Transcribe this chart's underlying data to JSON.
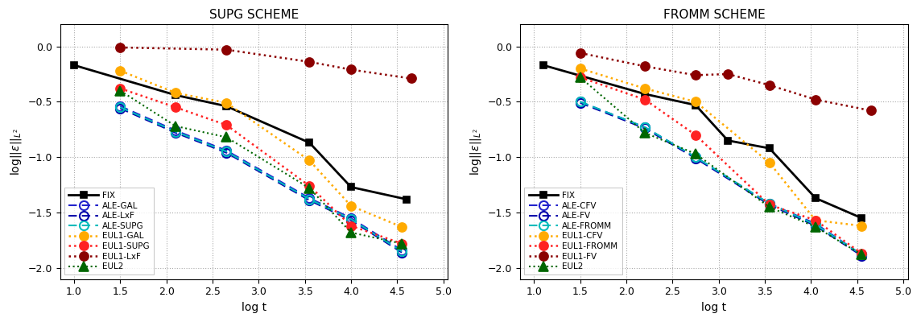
{
  "left_title": "SUPG SCHEME",
  "right_title": "FROMM SCHEME",
  "xlabel": "log t",
  "ylabel": "log||$\\varepsilon$||$_{L^2}$",
  "xlim": [
    0.85,
    5.05
  ],
  "ylim": [
    -2.1,
    0.2
  ],
  "xticks": [
    1,
    1.5,
    2,
    2.5,
    3,
    3.5,
    4,
    4.5,
    5
  ],
  "yticks": [
    0,
    -0.5,
    -1,
    -1.5,
    -2
  ],
  "left_series": [
    {
      "label": "FIX",
      "x": [
        1.0,
        2.1,
        2.65,
        3.55,
        4.0,
        4.6
      ],
      "y": [
        -0.17,
        -0.44,
        -0.54,
        -0.87,
        -1.27,
        -1.38
      ],
      "color": "#000000",
      "linestyle": "-",
      "marker": "s",
      "markersize": 6,
      "linewidth": 2.0,
      "markerfacecolor": "#000000"
    },
    {
      "label": "ALE-GAL",
      "x": [
        1.5,
        2.1,
        2.65,
        3.55,
        4.0,
        4.55
      ],
      "y": [
        -0.54,
        -0.76,
        -0.94,
        -1.37,
        -1.55,
        -1.84
      ],
      "color": "#2222cc",
      "linestyle": "dashed",
      "marker": "o",
      "markersize": 8,
      "linewidth": 1.5,
      "markerfacecolor": "none"
    },
    {
      "label": "ALE-LxF",
      "x": [
        1.5,
        2.1,
        2.65,
        3.55,
        4.0,
        4.55
      ],
      "y": [
        -0.56,
        -0.78,
        -0.96,
        -1.39,
        -1.57,
        -1.86
      ],
      "color": "#0000aa",
      "linestyle": "dashed",
      "marker": "o",
      "markersize": 8,
      "linewidth": 1.5,
      "markerfacecolor": "none"
    },
    {
      "label": "ALE-SUPG",
      "x": [
        1.5,
        2.1,
        2.65,
        3.55,
        4.0,
        4.55
      ],
      "y": [
        -0.55,
        -0.77,
        -0.95,
        -1.38,
        -1.56,
        -1.85
      ],
      "color": "#00bbbb",
      "linestyle": "dashed",
      "marker": "o",
      "markersize": 8,
      "linewidth": 1.5,
      "markerfacecolor": "none"
    },
    {
      "label": "EUL1-GAL",
      "x": [
        1.5,
        2.1,
        2.65,
        3.55,
        4.0,
        4.55
      ],
      "y": [
        -0.22,
        -0.42,
        -0.51,
        -1.03,
        -1.44,
        -1.63
      ],
      "color": "#ffaa00",
      "linestyle": "dotted",
      "marker": "o",
      "markersize": 8,
      "linewidth": 1.8,
      "markerfacecolor": "#ffaa00"
    },
    {
      "label": "EUL1-SUPG",
      "x": [
        1.5,
        2.1,
        2.65,
        3.55,
        4.0,
        4.55
      ],
      "y": [
        -0.38,
        -0.55,
        -0.71,
        -1.26,
        -1.62,
        -1.78
      ],
      "color": "#ff2222",
      "linestyle": "dotted",
      "marker": "o",
      "markersize": 8,
      "linewidth": 1.8,
      "markerfacecolor": "#ff2222"
    },
    {
      "label": "EUL1-LxF",
      "x": [
        1.5,
        2.65,
        3.55,
        4.0,
        4.65
      ],
      "y": [
        -0.01,
        -0.03,
        -0.14,
        -0.21,
        -0.29
      ],
      "color": "#8b0000",
      "linestyle": "dotted",
      "marker": "o",
      "markersize": 8,
      "linewidth": 1.8,
      "markerfacecolor": "#8b0000"
    },
    {
      "label": "EUL2",
      "x": [
        1.5,
        2.1,
        2.65,
        3.55,
        4.0,
        4.55
      ],
      "y": [
        -0.4,
        -0.72,
        -0.82,
        -1.28,
        -1.68,
        -1.78
      ],
      "color": "#006600",
      "linestyle": "dotted",
      "marker": "^",
      "markersize": 8,
      "linewidth": 1.5,
      "markerfacecolor": "#006600"
    }
  ],
  "right_series": [
    {
      "label": "FIX",
      "x": [
        1.1,
        2.2,
        2.75,
        3.1,
        3.55,
        4.05,
        4.55
      ],
      "y": [
        -0.17,
        -0.43,
        -0.53,
        -0.85,
        -0.92,
        -1.37,
        -1.55
      ],
      "color": "#000000",
      "linestyle": "-",
      "marker": "s",
      "markersize": 6,
      "linewidth": 2.0,
      "markerfacecolor": "#000000"
    },
    {
      "label": "ALE-CFV",
      "x": [
        1.5,
        2.2,
        2.75,
        3.55,
        4.05,
        4.55
      ],
      "y": [
        -0.5,
        -0.73,
        -1.0,
        -1.42,
        -1.6,
        -1.88
      ],
      "color": "#2222cc",
      "linestyle": "dashed",
      "marker": "o",
      "markersize": 8,
      "linewidth": 1.5,
      "markerfacecolor": "none"
    },
    {
      "label": "ALE-FV",
      "x": [
        1.5,
        2.2,
        2.75,
        3.55,
        4.05,
        4.55
      ],
      "y": [
        -0.51,
        -0.74,
        -1.01,
        -1.43,
        -1.62,
        -1.89
      ],
      "color": "#0000aa",
      "linestyle": "dashed",
      "marker": "o",
      "markersize": 8,
      "linewidth": 1.5,
      "markerfacecolor": "none"
    },
    {
      "label": "ALE-FROMM",
      "x": [
        1.5,
        2.2,
        2.75,
        3.55,
        4.05,
        4.55
      ],
      "y": [
        -0.5,
        -0.73,
        -1.0,
        -1.42,
        -1.61,
        -1.88
      ],
      "color": "#00bbbb",
      "linestyle": "dashed",
      "marker": "o",
      "markersize": 8,
      "linewidth": 1.5,
      "markerfacecolor": "none"
    },
    {
      "label": "EUL1-CFV",
      "x": [
        1.5,
        2.2,
        2.75,
        3.55,
        4.05,
        4.55
      ],
      "y": [
        -0.2,
        -0.38,
        -0.5,
        -1.05,
        -1.57,
        -1.62
      ],
      "color": "#ffaa00",
      "linestyle": "dotted",
      "marker": "o",
      "markersize": 8,
      "linewidth": 1.8,
      "markerfacecolor": "#ffaa00"
    },
    {
      "label": "EUL1-FROMM",
      "x": [
        1.5,
        2.2,
        2.75,
        3.55,
        4.05,
        4.55
      ],
      "y": [
        -0.28,
        -0.48,
        -0.8,
        -1.43,
        -1.57,
        -1.87
      ],
      "color": "#ff2222",
      "linestyle": "dotted",
      "marker": "o",
      "markersize": 8,
      "linewidth": 1.8,
      "markerfacecolor": "#ff2222"
    },
    {
      "label": "EUL1-FV",
      "x": [
        1.5,
        2.2,
        2.75,
        3.1,
        3.55,
        4.05,
        4.65
      ],
      "y": [
        -0.06,
        -0.18,
        -0.26,
        -0.25,
        -0.35,
        -0.48,
        -0.58
      ],
      "color": "#8b0000",
      "linestyle": "dotted",
      "marker": "o",
      "markersize": 8,
      "linewidth": 1.8,
      "markerfacecolor": "#8b0000"
    },
    {
      "label": "EUL2",
      "x": [
        1.5,
        2.2,
        2.75,
        3.55,
        4.05,
        4.55
      ],
      "y": [
        -0.28,
        -0.78,
        -0.97,
        -1.45,
        -1.63,
        -1.88
      ],
      "color": "#006600",
      "linestyle": "dotted",
      "marker": "^",
      "markersize": 8,
      "linewidth": 1.5,
      "markerfacecolor": "#006600"
    }
  ]
}
